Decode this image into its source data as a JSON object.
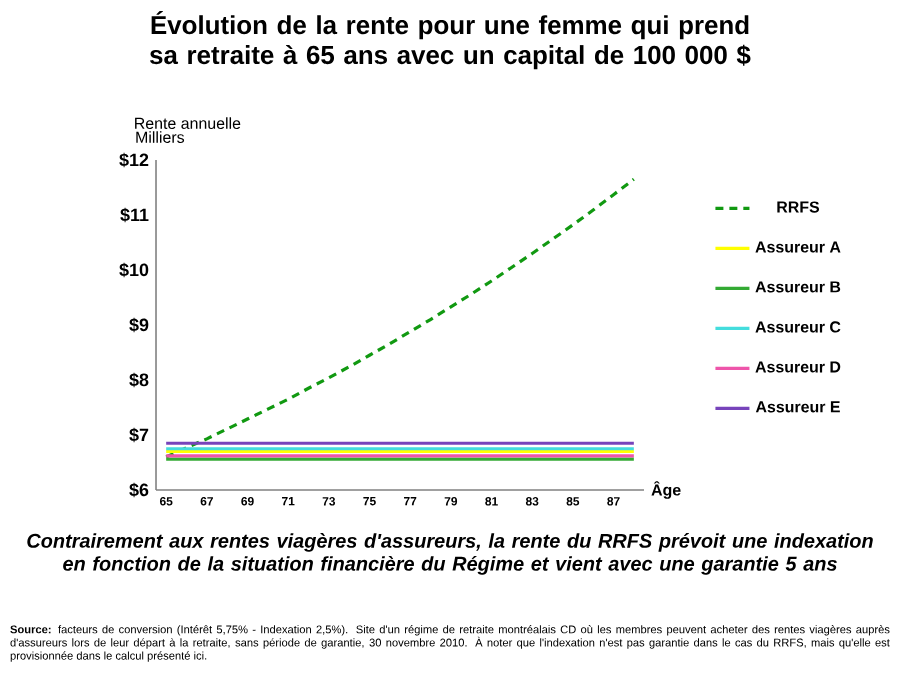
{
  "chart_data": {
    "type": "line",
    "title": "Évolution de la rente pour une femme qui prend sa retraite à 65 ans avec un capital de 100 000 $",
    "ylabel": "Rente annuelle",
    "xlabel": "Âge",
    "x": [
      65,
      66,
      67,
      68,
      69,
      70,
      71,
      72,
      73,
      74,
      75,
      76,
      77,
      78,
      79,
      80,
      81,
      82,
      83,
      84,
      85,
      86,
      87,
      88
    ],
    "xlim": [
      64.5,
      88.5
    ],
    "xticks": [
      65,
      67,
      69,
      71,
      73,
      75,
      77,
      79,
      81,
      83,
      85,
      87
    ],
    "ylim": [
      6,
      12
    ],
    "yticks": [
      {
        "value": 6,
        "label": "$6"
      },
      {
        "value": 7,
        "label": "$7"
      },
      {
        "value": 8,
        "label": "$8"
      },
      {
        "value": 9,
        "label": "$9"
      },
      {
        "value": 10,
        "label": "$10"
      },
      {
        "value": 11,
        "label": "$11"
      },
      {
        "value": 12,
        "label": "$12"
      }
    ],
    "series": [
      {
        "name": "RRFS",
        "color": "#119911",
        "line_style": "dashed",
        "values": [
          6.6,
          6.77,
          6.93,
          7.11,
          7.29,
          7.47,
          7.65,
          7.85,
          8.04,
          8.24,
          8.45,
          8.66,
          8.88,
          9.1,
          9.33,
          9.56,
          9.8,
          10.05,
          10.3,
          10.56,
          10.82,
          11.09,
          11.37,
          11.65
        ]
      },
      {
        "name": "Assureur A",
        "color": "#ffff00",
        "line_style": "solid",
        "values": [
          6.7,
          6.7,
          6.7,
          6.7,
          6.7,
          6.7,
          6.7,
          6.7,
          6.7,
          6.7,
          6.7,
          6.7,
          6.7,
          6.7,
          6.7,
          6.7,
          6.7,
          6.7,
          6.7,
          6.7,
          6.7,
          6.7,
          6.7,
          6.7
        ]
      },
      {
        "name": "Assureur B",
        "color": "#33aa33",
        "line_style": "solid",
        "values": [
          6.56,
          6.56,
          6.56,
          6.56,
          6.56,
          6.56,
          6.56,
          6.56,
          6.56,
          6.56,
          6.56,
          6.56,
          6.56,
          6.56,
          6.56,
          6.56,
          6.56,
          6.56,
          6.56,
          6.56,
          6.56,
          6.56,
          6.56,
          6.56
        ]
      },
      {
        "name": "Assureur C",
        "color": "#44dddd",
        "line_style": "solid",
        "values": [
          6.75,
          6.75,
          6.75,
          6.75,
          6.75,
          6.75,
          6.75,
          6.75,
          6.75,
          6.75,
          6.75,
          6.75,
          6.75,
          6.75,
          6.75,
          6.75,
          6.75,
          6.75,
          6.75,
          6.75,
          6.75,
          6.75,
          6.75,
          6.75
        ]
      },
      {
        "name": "Assureur D",
        "color": "#ee55aa",
        "line_style": "solid",
        "values": [
          6.62,
          6.62,
          6.62,
          6.62,
          6.62,
          6.62,
          6.62,
          6.62,
          6.62,
          6.62,
          6.62,
          6.62,
          6.62,
          6.62,
          6.62,
          6.62,
          6.62,
          6.62,
          6.62,
          6.62,
          6.62,
          6.62,
          6.62,
          6.62
        ]
      },
      {
        "name": "Assureur E",
        "color": "#7744bb",
        "line_style": "solid",
        "values": [
          6.85,
          6.85,
          6.85,
          6.85,
          6.85,
          6.85,
          6.85,
          6.85,
          6.85,
          6.85,
          6.85,
          6.85,
          6.85,
          6.85,
          6.85,
          6.85,
          6.85,
          6.85,
          6.85,
          6.85,
          6.85,
          6.85,
          6.85,
          6.85
        ]
      }
    ],
    "legend": "right",
    "marker": "none",
    "grid": false,
    "annotations": [
      "Milliers",
      "Contrairement aux rentes viagères d'assureurs, la rente du RRFS prévoit une indexation en fonction de la situation financière du Régime et vient avec une garantie 5 ans",
      "**Source:** facteurs de conversion (Intérêt 5,75% - Indexation 2,5%). Site d'un régime de retraite montréalais CD où les membres peuvent acheter des rentes viagères auprès d'assureurs lors de leur départ à la retraite, sans période de garantie, 30 novembre 2010. À noter que l'indexation n'est pas garantie dans le cas du RRFS, mais qu'elle est provisionnée dans le calcul présenté ici."
    ]
  }
}
